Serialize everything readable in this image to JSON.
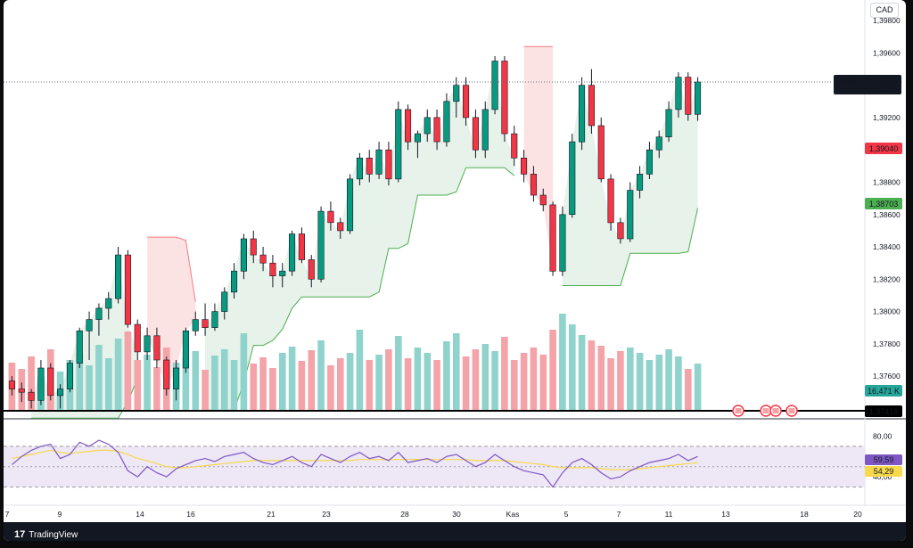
{
  "currency": "CAD",
  "brand": "TradingView",
  "chart_data": {
    "type": "candlestick",
    "symbol": "USDCAD",
    "last_price": "1,39424",
    "countdown": "42:41",
    "level_red": "1,39040",
    "level_green": "1,38703",
    "level_black": "1,37416",
    "volume_label": "16,471 K",
    "rsi_value": "59,59",
    "rsi_ma_value": "54,29",
    "price_axis": [
      "1,39800",
      "1,39600",
      "1,39200",
      "1,39000",
      "1,38800",
      "1,38600",
      "1,38400",
      "1,38200",
      "1,38000",
      "1,37800",
      "1,37600"
    ],
    "price_axis_values": [
      1.398,
      1.396,
      1.392,
      1.39,
      1.388,
      1.386,
      1.384,
      1.382,
      1.38,
      1.378,
      1.376
    ],
    "rsi_axis": [
      "80,00",
      "40,00"
    ],
    "x_ticks": [
      "7",
      "9",
      "14",
      "16",
      "21",
      "23",
      "28",
      "30",
      "Kas",
      "5",
      "7",
      "11",
      "13",
      "18",
      "20"
    ],
    "ylim": [
      1.3738,
      1.399
    ],
    "rsi_ylim": [
      20,
      90
    ],
    "rsi_bands": [
      70,
      30
    ],
    "colors": {
      "up": "#089981",
      "down": "#f23645",
      "vol_up": "#8fd3cc",
      "vol_down": "#f4a3a8",
      "rsi": "#7e57c2",
      "rsi_ma": "#f7d94c"
    },
    "candles": [
      [
        1.3757,
        1.376,
        1.3748,
        1.3752
      ],
      [
        1.3752,
        1.3756,
        1.3744,
        1.375
      ],
      [
        1.375,
        1.3752,
        1.374,
        1.3745
      ],
      [
        1.3745,
        1.377,
        1.3742,
        1.3765
      ],
      [
        1.3765,
        1.3768,
        1.3745,
        1.3748
      ],
      [
        1.3748,
        1.3755,
        1.374,
        1.3752
      ],
      [
        1.3752,
        1.377,
        1.375,
        1.3768
      ],
      [
        1.3768,
        1.379,
        1.3765,
        1.3788
      ],
      [
        1.3788,
        1.38,
        1.377,
        1.3795
      ],
      [
        1.3795,
        1.3805,
        1.3785,
        1.3802
      ],
      [
        1.3802,
        1.3812,
        1.3795,
        1.3808
      ],
      [
        1.3808,
        1.384,
        1.3805,
        1.3835
      ],
      [
        1.3835,
        1.3838,
        1.379,
        1.3792
      ],
      [
        1.3792,
        1.3795,
        1.377,
        1.3775
      ],
      [
        1.3775,
        1.379,
        1.377,
        1.3785
      ],
      [
        1.3785,
        1.379,
        1.3765,
        1.377
      ],
      [
        1.377,
        1.3772,
        1.3748,
        1.3752
      ],
      [
        1.3752,
        1.377,
        1.3745,
        1.3765
      ],
      [
        1.3765,
        1.379,
        1.3762,
        1.3788
      ],
      [
        1.3788,
        1.38,
        1.3785,
        1.3795
      ],
      [
        1.3795,
        1.3805,
        1.3785,
        1.379
      ],
      [
        1.379,
        1.3805,
        1.3788,
        1.38
      ],
      [
        1.38,
        1.3815,
        1.3795,
        1.3812
      ],
      [
        1.3812,
        1.383,
        1.3808,
        1.3825
      ],
      [
        1.3825,
        1.3848,
        1.382,
        1.3845
      ],
      [
        1.3845,
        1.385,
        1.383,
        1.3835
      ],
      [
        1.3835,
        1.384,
        1.3825,
        1.383
      ],
      [
        1.383,
        1.3835,
        1.3815,
        1.3822
      ],
      [
        1.3822,
        1.383,
        1.3815,
        1.3825
      ],
      [
        1.3825,
        1.385,
        1.3822,
        1.3848
      ],
      [
        1.3848,
        1.3852,
        1.383,
        1.3832
      ],
      [
        1.3832,
        1.3835,
        1.3815,
        1.382
      ],
      [
        1.382,
        1.3865,
        1.3818,
        1.3862
      ],
      [
        1.3862,
        1.3868,
        1.385,
        1.3855
      ],
      [
        1.3855,
        1.3858,
        1.3845,
        1.385
      ],
      [
        1.385,
        1.3885,
        1.3848,
        1.3882
      ],
      [
        1.3882,
        1.3898,
        1.3878,
        1.3895
      ],
      [
        1.3895,
        1.39,
        1.388,
        1.3885
      ],
      [
        1.3885,
        1.3905,
        1.3882,
        1.39
      ],
      [
        1.39,
        1.3905,
        1.3878,
        1.3882
      ],
      [
        1.3882,
        1.393,
        1.388,
        1.3925
      ],
      [
        1.3925,
        1.3928,
        1.39,
        1.3905
      ],
      [
        1.3905,
        1.3912,
        1.3895,
        1.391
      ],
      [
        1.391,
        1.3925,
        1.3905,
        1.392
      ],
      [
        1.392,
        1.3925,
        1.39,
        1.3905
      ],
      [
        1.3905,
        1.3935,
        1.3902,
        1.393
      ],
      [
        1.393,
        1.3945,
        1.392,
        1.394
      ],
      [
        1.394,
        1.3945,
        1.3915,
        1.392
      ],
      [
        1.392,
        1.3925,
        1.3895,
        1.39
      ],
      [
        1.39,
        1.393,
        1.3895,
        1.3925
      ],
      [
        1.3925,
        1.3958,
        1.3922,
        1.3955
      ],
      [
        1.3955,
        1.3958,
        1.3905,
        1.391
      ],
      [
        1.391,
        1.3915,
        1.389,
        1.3895
      ],
      [
        1.3895,
        1.39,
        1.388,
        1.3885
      ],
      [
        1.3885,
        1.389,
        1.3868,
        1.3872
      ],
      [
        1.3872,
        1.3876,
        1.3862,
        1.3866
      ],
      [
        1.3866,
        1.3868,
        1.3822,
        1.3825
      ],
      [
        1.3825,
        1.3865,
        1.3822,
        1.386
      ],
      [
        1.386,
        1.391,
        1.3858,
        1.3905
      ],
      [
        1.3905,
        1.3945,
        1.39,
        1.394
      ],
      [
        1.394,
        1.395,
        1.391,
        1.3915
      ],
      [
        1.3915,
        1.392,
        1.388,
        1.3882
      ],
      [
        1.3882,
        1.3885,
        1.385,
        1.3855
      ],
      [
        1.3855,
        1.3858,
        1.3842,
        1.3845
      ],
      [
        1.3845,
        1.388,
        1.3843,
        1.3875
      ],
      [
        1.3875,
        1.389,
        1.387,
        1.3885
      ],
      [
        1.3885,
        1.3905,
        1.3882,
        1.39
      ],
      [
        1.39,
        1.3912,
        1.3895,
        1.3908
      ],
      [
        1.3908,
        1.393,
        1.3905,
        1.3925
      ],
      [
        1.3925,
        1.3948,
        1.392,
        1.3945
      ],
      [
        1.3945,
        1.3948,
        1.3918,
        1.3922
      ],
      [
        1.3922,
        1.3945,
        1.3918,
        1.3942
      ]
    ],
    "volumes": [
      55,
      48,
      62,
      40,
      70,
      45,
      58,
      66,
      52,
      75,
      60,
      82,
      90,
      58,
      64,
      50,
      72,
      55,
      60,
      68,
      47,
      63,
      70,
      58,
      88,
      54,
      61,
      49,
      66,
      73,
      57,
      69,
      80,
      52,
      60,
      66,
      92,
      58,
      64,
      70,
      85,
      60,
      72,
      66,
      58,
      79,
      88,
      62,
      70,
      76,
      68,
      84,
      58,
      66,
      72,
      64,
      92,
      110,
      98,
      86,
      80,
      74,
      60,
      68,
      72,
      66,
      58,
      64,
      70,
      62,
      48,
      54
    ],
    "rsi": [
      52,
      60,
      66,
      70,
      72,
      58,
      62,
      74,
      70,
      76,
      72,
      64,
      46,
      40,
      50,
      44,
      40,
      48,
      52,
      56,
      58,
      55,
      60,
      62,
      64,
      58,
      54,
      52,
      56,
      60,
      54,
      50,
      62,
      58,
      54,
      60,
      64,
      58,
      60,
      56,
      64,
      54,
      56,
      58,
      54,
      60,
      62,
      56,
      50,
      54,
      62,
      56,
      50,
      46,
      44,
      42,
      30,
      44,
      54,
      58,
      52,
      44,
      38,
      40,
      46,
      50,
      54,
      56,
      58,
      62,
      56,
      60
    ],
    "rsi_ma": [
      58,
      60,
      62,
      64,
      66,
      64,
      63,
      64,
      65,
      66,
      66,
      65,
      62,
      58,
      56,
      53,
      50,
      49,
      49,
      50,
      51,
      52,
      53,
      54,
      55,
      56,
      56,
      56,
      56,
      56,
      56,
      56,
      56,
      56,
      56,
      56,
      57,
      57,
      57,
      57,
      57,
      57,
      57,
      57,
      57,
      57,
      57,
      57,
      56,
      56,
      56,
      56,
      55,
      54,
      53,
      52,
      50,
      49,
      49,
      49,
      49,
      48,
      47,
      47,
      47,
      48,
      49,
      50,
      51,
      52,
      53,
      54
    ],
    "events": [
      "us-flag",
      "us-flag",
      "us-flag",
      "us-flag"
    ]
  }
}
